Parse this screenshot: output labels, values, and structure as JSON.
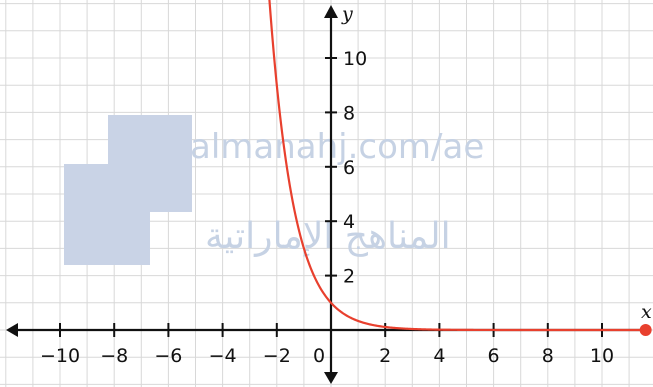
{
  "chart_data": {
    "type": "line",
    "title": "",
    "xlabel": "x",
    "ylabel": "y",
    "xlim": [
      -12,
      12
    ],
    "ylim": [
      -2,
      12
    ],
    "grid": true,
    "x_ticks": [
      "−10",
      "−8",
      "−6",
      "−4",
      "−2",
      "0",
      "2",
      "4",
      "6",
      "8",
      "10"
    ],
    "y_ticks": [
      "2",
      "4",
      "6",
      "8",
      "10"
    ],
    "colors": {
      "curve": "#e8402e",
      "axis": "#111111",
      "grid": "#d8d8d8"
    },
    "series": [
      {
        "x": [
          -2.5,
          -2,
          -1.5,
          -1,
          -0.5,
          0,
          0.5,
          1,
          1.5,
          2,
          3,
          4,
          6,
          8,
          10,
          11.5
        ],
        "y": [
          11.2,
          7.4,
          4.9,
          3.2,
          1.9,
          1,
          0.6,
          0.35,
          0.2,
          0.1,
          0.03,
          0.01,
          0,
          0,
          0,
          0
        ]
      }
    ]
  },
  "watermark": {
    "url": "almanahj.com/ae",
    "arabic": "المناهج الإماراتية"
  }
}
